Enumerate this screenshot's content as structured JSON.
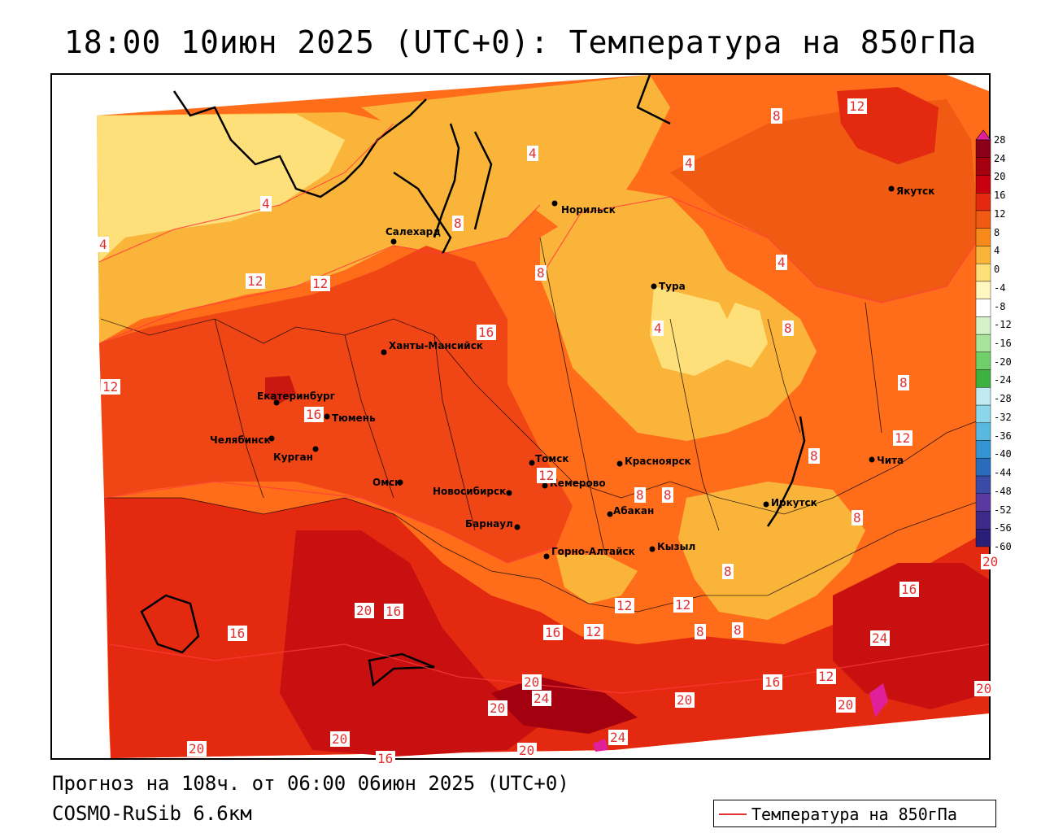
{
  "title": "18:00 10июн 2025 (UTC+0): Температура на 850гПа",
  "footer": {
    "forecast": "Прогноз на 108ч. от 06:00 06июн 2025 (UTC+0)",
    "model": "COSMO-RuSib 6.6км"
  },
  "legend": {
    "label": "Температура на 850гПа",
    "line_color": "#e23030"
  },
  "colorbar": {
    "labels": [
      "28",
      "24",
      "20",
      "16",
      "12",
      "8",
      "4",
      "0",
      "-4",
      "-8",
      "-12",
      "-16",
      "-20",
      "-24",
      "-28",
      "-32",
      "-36",
      "-40",
      "-44",
      "-48",
      "-52",
      "-56",
      "-60"
    ],
    "colors": [
      "#8b0016",
      "#a30010",
      "#c80010",
      "#e32a10",
      "#f05a12",
      "#f88a1c",
      "#fbb43a",
      "#fde07a",
      "#fff6c0",
      "#ffffff",
      "#d4f2c8",
      "#a8e49a",
      "#6fd06a",
      "#3eb23e",
      "#bfeaf2",
      "#8ad6ea",
      "#58b8e0",
      "#3494d2",
      "#2a6cbc",
      "#3a4aa8",
      "#5a3aa0",
      "#3e2a8a",
      "#2a1e78"
    ]
  },
  "cities": [
    {
      "name": "Норильск"
    },
    {
      "name": "Якутск"
    },
    {
      "name": "Салехард"
    },
    {
      "name": "Тура"
    },
    {
      "name": "Ханты-Мансийск"
    },
    {
      "name": "Екатеринбург"
    },
    {
      "name": "Тюмень"
    },
    {
      "name": "Челябинск"
    },
    {
      "name": "Курган"
    },
    {
      "name": "Омск"
    },
    {
      "name": "Новосибирск"
    },
    {
      "name": "Томск"
    },
    {
      "name": "Кемерово"
    },
    {
      "name": "Красноярск"
    },
    {
      "name": "Абакан"
    },
    {
      "name": "Барнаул"
    },
    {
      "name": "Горно-Алтайск"
    },
    {
      "name": "Кызыл"
    },
    {
      "name": "Иркутск"
    },
    {
      "name": "Чита"
    }
  ],
  "contour_labels": [
    "12",
    "8",
    "4",
    "4",
    "4",
    "4",
    "8",
    "12",
    "8",
    "4",
    "4",
    "8",
    "8",
    "12",
    "12",
    "16",
    "16",
    "12",
    "8",
    "12",
    "8",
    "8",
    "8",
    "20",
    "16",
    "12",
    "16",
    "12",
    "12",
    "8",
    "8",
    "8",
    "20",
    "24",
    "16",
    "20",
    "16",
    "24",
    "12",
    "16",
    "20",
    "24",
    "20",
    "20",
    "20",
    "20",
    "20",
    "16",
    "20"
  ]
}
